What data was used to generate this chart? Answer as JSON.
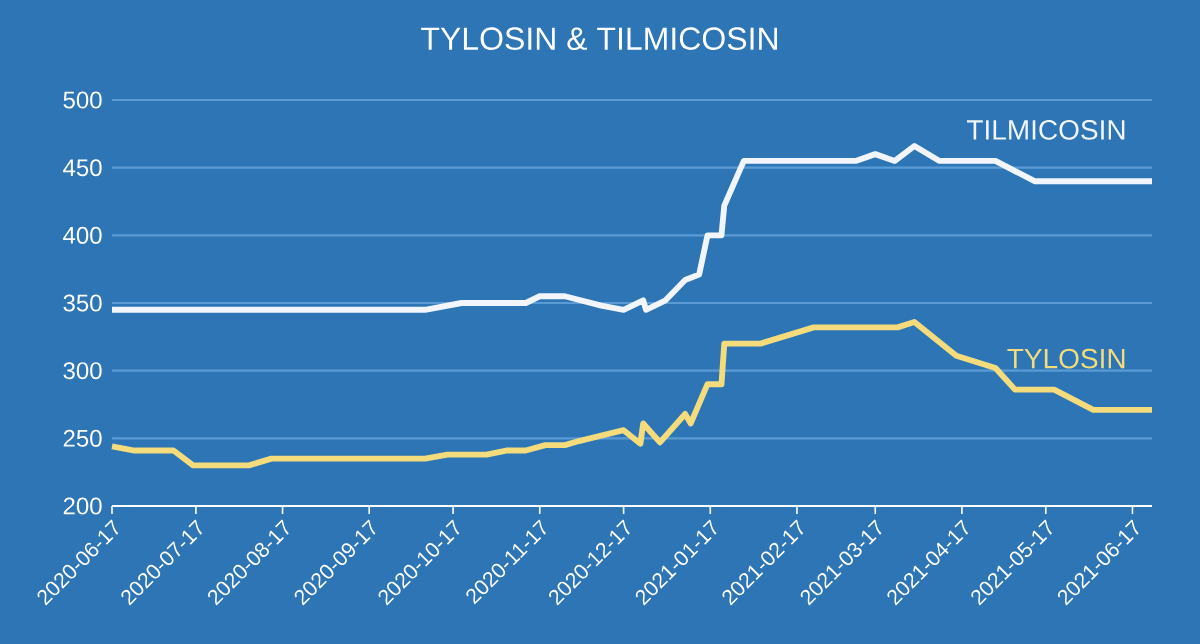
{
  "chart_data": {
    "type": "line",
    "title": "TYLOSIN & TILMICOSIN",
    "xlim": [
      "2020-06-17",
      "2021-06-24"
    ],
    "xticks": [
      "2020-06-17",
      "2020-07-17",
      "2020-08-17",
      "2020-09-17",
      "2020-10-17",
      "2020-11-17",
      "2020-12-17",
      "2021-01-17",
      "2021-02-17",
      "2021-03-17",
      "2021-04-17",
      "2021-05-17",
      "2021-06-17"
    ],
    "ylim": [
      200,
      500
    ],
    "yticks": [
      200,
      250,
      300,
      350,
      400,
      450,
      500
    ],
    "grid": "y",
    "legend": false,
    "line_style": "solid",
    "series": [
      {
        "name": "TILMICOSIN",
        "color": "#f2f6fc",
        "x": [
          "2020-06-17",
          "2020-10-07",
          "2020-10-20",
          "2020-11-12",
          "2020-11-17",
          "2020-11-26",
          "2020-12-09",
          "2020-12-17",
          "2020-12-24",
          "2020-12-25",
          "2021-01-01",
          "2021-01-08",
          "2021-01-13",
          "2021-01-16",
          "2021-01-21",
          "2021-01-22",
          "2021-01-29",
          "2021-03-10",
          "2021-03-17",
          "2021-03-24",
          "2021-03-31",
          "2021-04-09",
          "2021-04-29",
          "2021-05-13",
          "2021-06-24"
        ],
        "values": [
          345,
          345,
          350,
          350,
          355,
          355,
          348,
          345,
          352,
          345,
          352,
          367,
          371,
          400,
          400,
          422,
          455,
          455,
          460,
          455,
          466,
          455,
          455,
          440,
          440
        ]
      },
      {
        "name": "TYLOSIN",
        "color": "#f4dc7c",
        "x": [
          "2020-06-17",
          "2020-06-25",
          "2020-07-09",
          "2020-07-16",
          "2020-08-05",
          "2020-08-13",
          "2020-10-07",
          "2020-10-15",
          "2020-10-29",
          "2020-11-05",
          "2020-11-12",
          "2020-11-19",
          "2020-11-26",
          "2020-12-01",
          "2020-12-17",
          "2020-12-23",
          "2020-12-24",
          "2020-12-30",
          "2021-01-08",
          "2021-01-10",
          "2021-01-16",
          "2021-01-21",
          "2021-01-22",
          "2021-02-04",
          "2021-02-23",
          "2021-03-25",
          "2021-03-31",
          "2021-04-15",
          "2021-04-29",
          "2021-05-06",
          "2021-05-20",
          "2021-06-03",
          "2021-06-24"
        ],
        "values": [
          244,
          241,
          241,
          230,
          230,
          235,
          235,
          238,
          238,
          241,
          241,
          245,
          245,
          248,
          256,
          246,
          261,
          247,
          268,
          261,
          290,
          290,
          320,
          320,
          332,
          332,
          336,
          311,
          302,
          286,
          286,
          271,
          271
        ]
      }
    ]
  }
}
